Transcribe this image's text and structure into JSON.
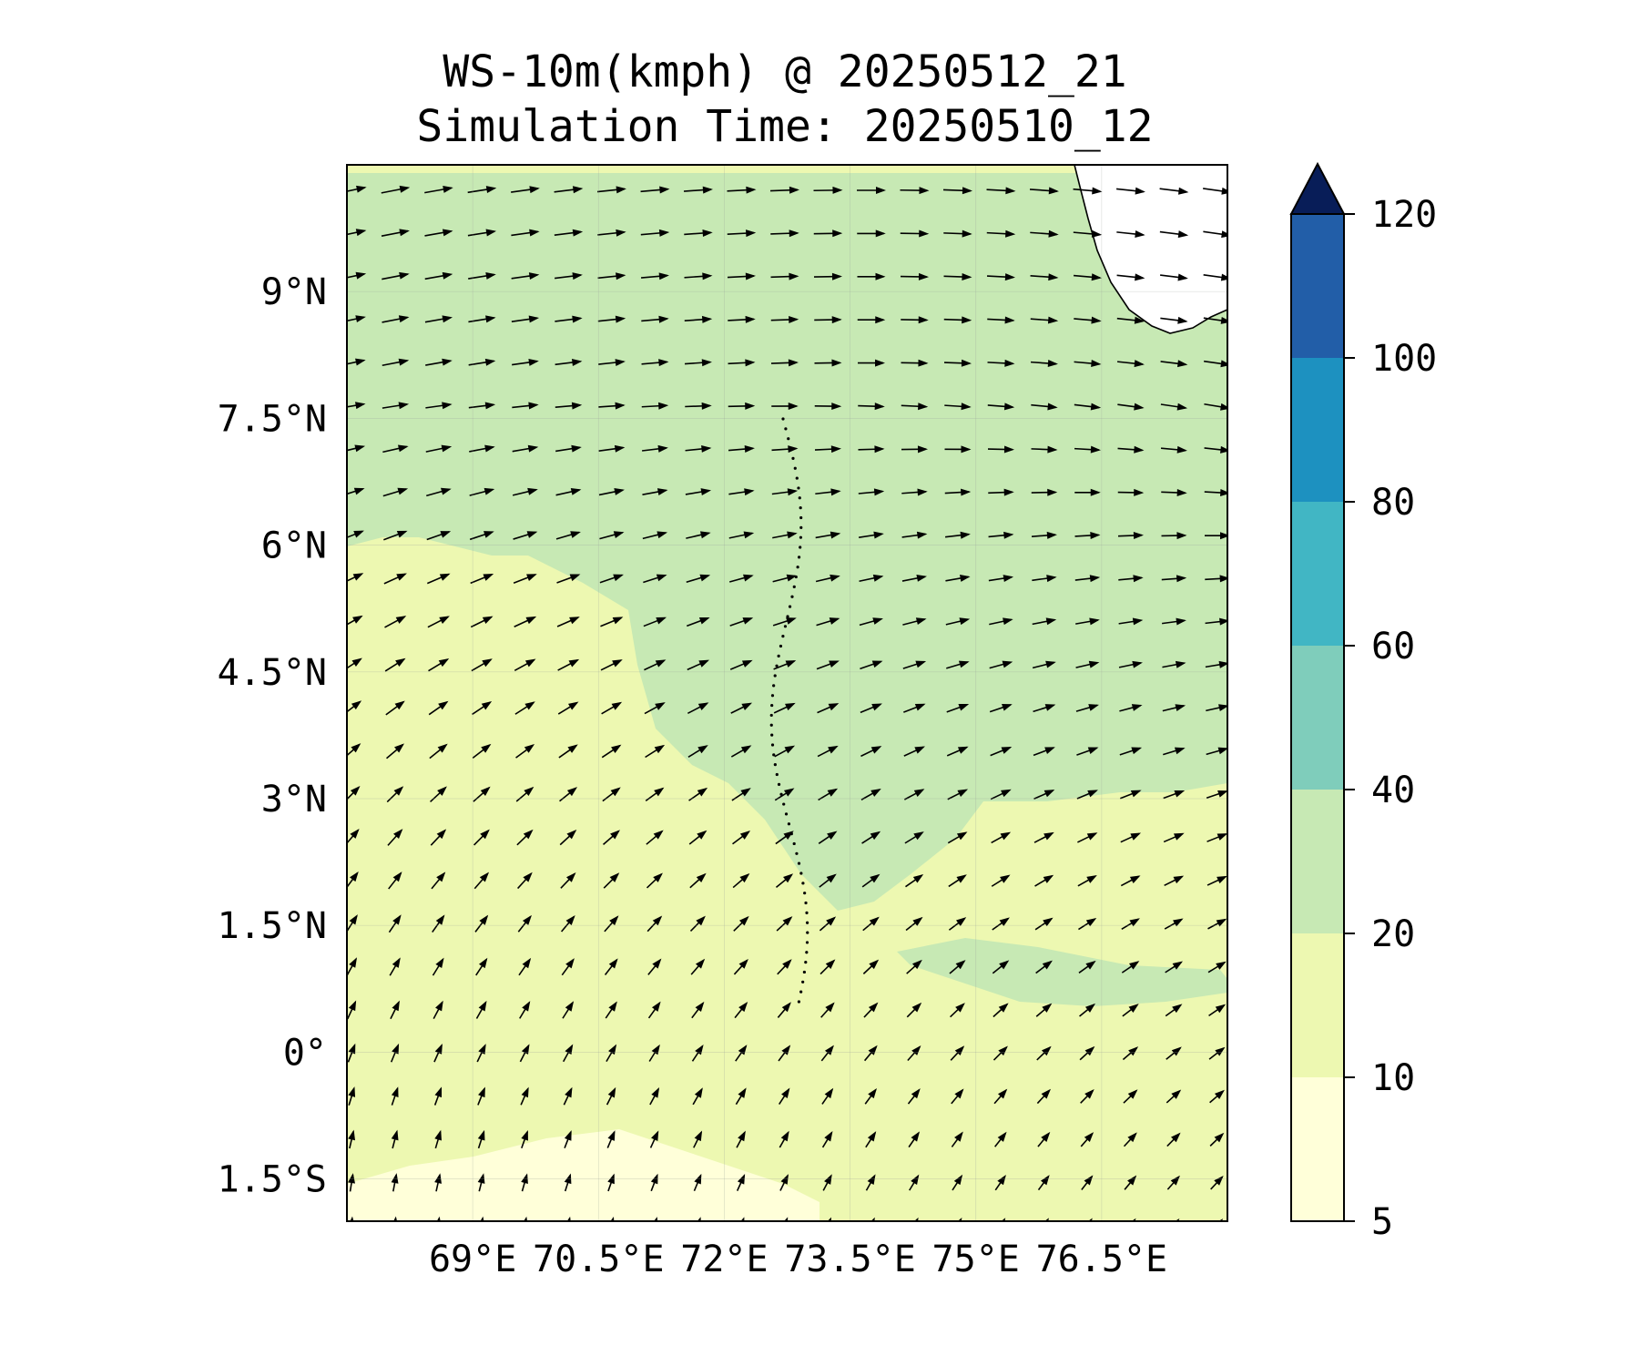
{
  "title": {
    "line1": "WS-10m(kmph) @ 20250512_21",
    "line2": "Simulation Time: 20250510_12"
  },
  "map": {
    "lon_range": [
      67.5,
      78.0
    ],
    "lat_range": [
      -2.0,
      10.5
    ],
    "x_ticks": [
      {
        "value": 69.0,
        "label": "69°E"
      },
      {
        "value": 70.5,
        "label": "70.5°E"
      },
      {
        "value": 72.0,
        "label": "72°E"
      },
      {
        "value": 73.5,
        "label": "73.5°E"
      },
      {
        "value": 75.0,
        "label": "75°E"
      },
      {
        "value": 76.5,
        "label": "76.5°E"
      }
    ],
    "y_ticks": [
      {
        "value": 9.0,
        "label": "9°N"
      },
      {
        "value": 7.5,
        "label": "7.5°N"
      },
      {
        "value": 6.0,
        "label": "6°N"
      },
      {
        "value": 4.5,
        "label": "4.5°N"
      },
      {
        "value": 3.0,
        "label": "3°N"
      },
      {
        "value": 1.5,
        "label": "1.5°N"
      },
      {
        "value": 0.0,
        "label": "0°"
      },
      {
        "value": -1.5,
        "label": "1.5°S"
      }
    ],
    "gridlines": true
  },
  "colorbar": {
    "levels": [
      5,
      10,
      20,
      40,
      60,
      80,
      100,
      120
    ],
    "labels": [
      "5",
      "10",
      "20",
      "40",
      "60",
      "80",
      "100",
      "120"
    ],
    "colors": [
      "#ffffd9",
      "#edf8b1",
      "#c7e9b4",
      "#7fcdbb",
      "#41b6c4",
      "#1d91c0",
      "#225ea8",
      "#253494"
    ],
    "extend_color": "#081d58",
    "extend": "max"
  },
  "field_colors": {
    "low": "#ffffd9",
    "mid": "#edf8b1",
    "high": "#c7e9b4",
    "land": "#ffffff"
  }
}
